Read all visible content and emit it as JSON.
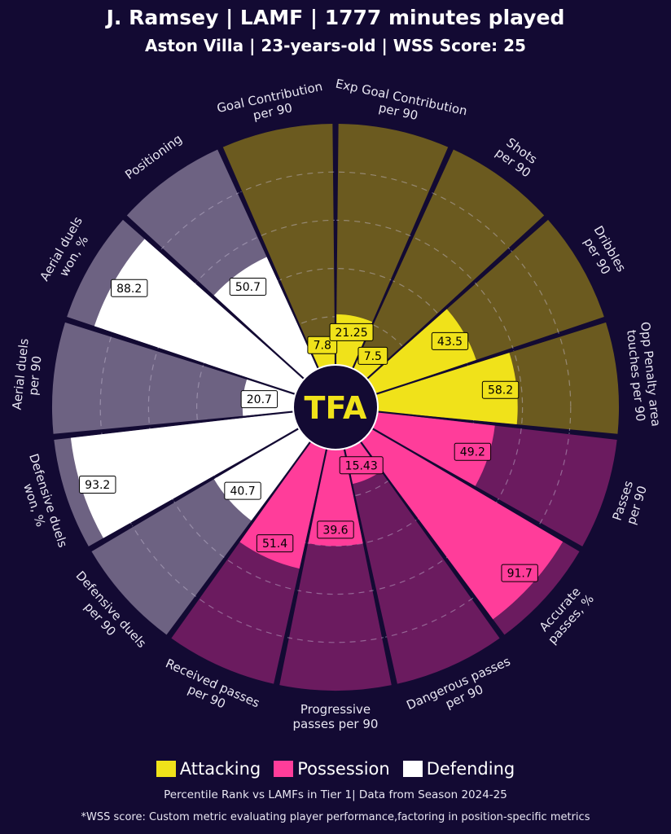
{
  "header": {
    "title": "J. Ramsey | LAMF | 1777 minutes played",
    "subtitle": "Aston Villa | 23-years-old | WSS Score: 25"
  },
  "logo": {
    "text": "TFA",
    "color": "#f0e21a"
  },
  "legend": [
    {
      "label": "Attacking",
      "color": "#f0e21a"
    },
    {
      "label": "Possession",
      "color": "#ff3d9a"
    },
    {
      "label": "Defending",
      "color": "#ffffff"
    }
  ],
  "footer": {
    "note": "Percentile Rank vs LAMFs in Tier 1| Data from Season 2024-25",
    "wss_note": "*WSS score: Custom metric evaluating player performance,factoring in position-specific metrics"
  },
  "chart_data": {
    "type": "radar-bar",
    "scale": [
      0,
      100
    ],
    "colors": {
      "attacking": {
        "fill": "#f0e21a",
        "background": "#6b5a1f"
      },
      "possession": {
        "fill": "#ff3d9a",
        "background": "#6b1b5f"
      },
      "defending": {
        "fill": "#ffffff",
        "background": "#6d6282"
      }
    },
    "metrics": [
      {
        "label": "Goal Contribution\nper 90",
        "group": "attacking",
        "percentile": 8,
        "value": "7.8"
      },
      {
        "label": "Exp Goal Contribution\nper 90",
        "group": "attacking",
        "percentile": 21,
        "value": "21.25"
      },
      {
        "label": "Shots\nper 90",
        "group": "attacking",
        "percentile": 8,
        "value": "7.5"
      },
      {
        "label": "Dribbles\nper 90",
        "group": "attacking",
        "percentile": 44,
        "value": "43.5"
      },
      {
        "label": "Opp Penalty area\ntouches per 90",
        "group": "attacking",
        "percentile": 58,
        "value": "58.2"
      },
      {
        "label": "Passes\nper 90",
        "group": "possession",
        "percentile": 49,
        "value": "49.2"
      },
      {
        "label": "Accurate\npasses, %",
        "group": "possession",
        "percentile": 92,
        "value": "91.7"
      },
      {
        "label": "Dangerous passes\nper 90",
        "group": "possession",
        "percentile": 15,
        "value": "15.43"
      },
      {
        "label": "Progressive\npasses per 90",
        "group": "possession",
        "percentile": 40,
        "value": "39.6"
      },
      {
        "label": "Received passes\nper 90",
        "group": "possession",
        "percentile": 51,
        "value": "51.4"
      },
      {
        "label": "Defensive duels\nper 90",
        "group": "defending",
        "percentile": 41,
        "value": "40.7"
      },
      {
        "label": "Defensive duels\nwon, %",
        "group": "defending",
        "percentile": 93,
        "value": "93.2"
      },
      {
        "label": "Aerial duels\nper 90",
        "group": "defending",
        "percentile": 21,
        "value": "20.7"
      },
      {
        "label": "Aerial duels\nwon, %",
        "group": "defending",
        "percentile": 88,
        "value": "88.2"
      },
      {
        "label": "Positioning",
        "group": "defending",
        "percentile": 51,
        "value": "50.7"
      }
    ]
  }
}
